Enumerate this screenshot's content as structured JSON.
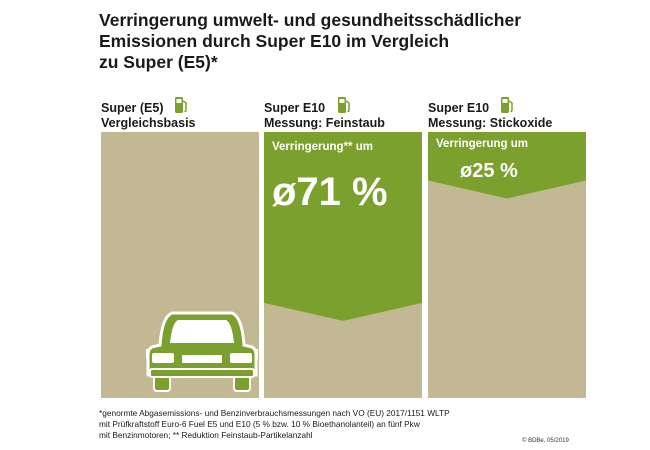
{
  "title": {
    "line1": "Verringerung umwelt- und gesundheitsschädlicher",
    "line2": "Emissionen durch Super E10 im Vergleich",
    "line3": "zu Super (E5)*"
  },
  "columns": [
    {
      "line1": "Super (E5)",
      "line2": "Vergleichsbasis",
      "reduction_label": "",
      "reduction_value": ""
    },
    {
      "line1": "Super E10",
      "line2": "Messung: Feinstaub",
      "reduction_label": "Verringerung** um",
      "reduction_value": "ø71 %"
    },
    {
      "line1": "Super E10",
      "line2": "Messung: Stickoxide",
      "reduction_label": "Verringerung um",
      "reduction_value": "ø25 %"
    }
  ],
  "chart_data": {
    "type": "bar",
    "categories": [
      "Super (E5) Vergleichsbasis",
      "Super E10 Messung: Feinstaub",
      "Super E10 Messung: Stickoxide"
    ],
    "baseline_percent": [
      100,
      100,
      100
    ],
    "reduction_percent": [
      0,
      71,
      25
    ],
    "remaining_percent": [
      100,
      29,
      75
    ],
    "ylim": [
      0,
      100
    ],
    "grid": false
  },
  "footnote": {
    "line1": "*genormte Abgasemissions- und Benzinverbrauchsmessungen nach VO (EU) 2017/1151 WLTP",
    "line2": "mit Prüfkraftstoff Euro-6 Fuel E5 und E10 (5 % bzw. 10 % Bioethanolanteil) an fünf Pkw",
    "line3": "mit Benzinmotoren; ** Reduktion Feinstaub-Partikelanzahl"
  },
  "credit": "© BDBe, 05/2019",
  "colors": {
    "tan": "#c2b994",
    "green": "#7ba02d",
    "text": "#1a1a1a",
    "white": "#ffffff"
  },
  "icons": {
    "pump": "fuel-pump-icon",
    "car": "car-icon"
  }
}
